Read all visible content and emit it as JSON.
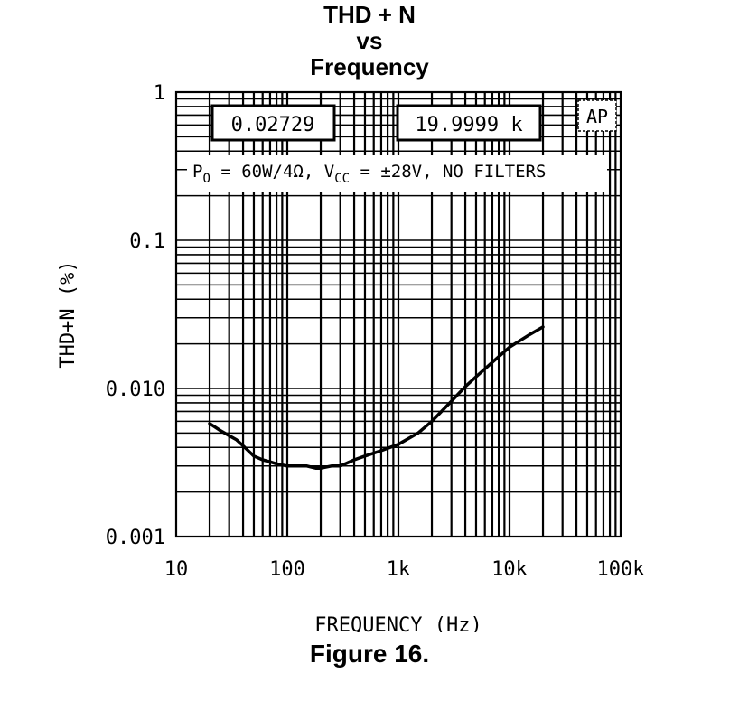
{
  "chart_data": {
    "type": "line",
    "title_lines": [
      "THD + N",
      "vs",
      "Frequency"
    ],
    "xlabel": "FREQUENCY (Hz)",
    "ylabel": "THD+N (%)",
    "xscale": "log",
    "yscale": "log",
    "xlim": [
      10,
      100000
    ],
    "ylim": [
      0.001,
      1
    ],
    "x_ticks": [
      10,
      100,
      1000,
      10000,
      100000
    ],
    "x_tick_labels": [
      "10",
      "100",
      "1k",
      "10k",
      "100k"
    ],
    "y_ticks": [
      1,
      0.1,
      0.01,
      0.001
    ],
    "y_tick_labels": [
      "1",
      "0.1",
      "0.010",
      "0.001"
    ],
    "grid": true,
    "series": [
      {
        "x": [
          20,
          25,
          30,
          35,
          40,
          50,
          60,
          70,
          80,
          100,
          120,
          150,
          180,
          200,
          250,
          300,
          400,
          500,
          700,
          1000,
          1500,
          2000,
          3000,
          4000,
          5000,
          7000,
          10000,
          15000,
          20000
        ],
        "y": [
          0.0058,
          0.0052,
          0.0048,
          0.0045,
          0.0041,
          0.0035,
          0.0033,
          0.0032,
          0.0031,
          0.003,
          0.003,
          0.003,
          0.0029,
          0.0029,
          0.003,
          0.003,
          0.0033,
          0.0035,
          0.0038,
          0.0042,
          0.005,
          0.006,
          0.0082,
          0.0103,
          0.012,
          0.015,
          0.019,
          0.023,
          0.026
        ]
      }
    ],
    "annotations": {
      "readout_left": "0.02729",
      "readout_right": "19.9999 k",
      "ap_badge": "AP",
      "conditions": {
        "po_sym": "P",
        "po_sub": "O",
        "po_rest": " = 60W/4Ω, ",
        "vcc_sym": "V",
        "vcc_sub": "CC",
        "vcc_rest": " = ±28V, NO FILTERS"
      }
    }
  },
  "caption": "Figure 16."
}
